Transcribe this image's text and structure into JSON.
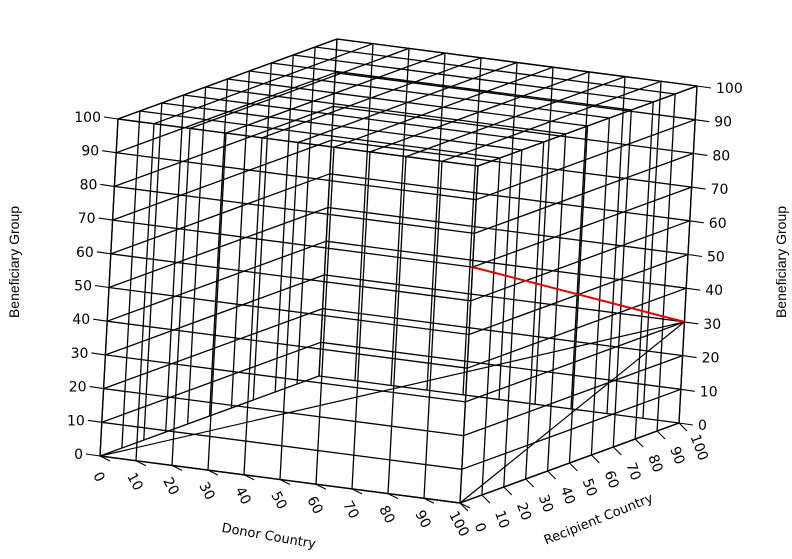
{
  "chart_data": {
    "type": "line3d",
    "title": "",
    "xlabel": "Donor Country",
    "ylabel": "Recipient Country",
    "zlabel_left": "Beneficiary Group",
    "zlabel_right": "Beneficiary Group",
    "xlim": [
      0,
      100
    ],
    "ylim": [
      0,
      100
    ],
    "zlim": [
      0,
      100
    ],
    "x_ticks": [
      "0",
      "10",
      "20",
      "30",
      "40",
      "50",
      "60",
      "70",
      "80",
      "90",
      "100"
    ],
    "y_ticks": [
      "0",
      "10",
      "20",
      "30",
      "40",
      "50",
      "60",
      "70",
      "80",
      "90",
      "100"
    ],
    "z_ticks": [
      "0",
      "10",
      "20",
      "30",
      "40",
      "50",
      "60",
      "70",
      "80",
      "90",
      "100"
    ],
    "grid": true,
    "series": [
      {
        "color": "#e00000",
        "points": [
          {
            "x": 100,
            "y": 100,
            "z": 30
          },
          {
            "x": 100,
            "y": 0,
            "z": 70
          }
        ]
      }
    ],
    "guides": [
      {
        "color": "#000000",
        "points": [
          {
            "x": 0,
            "y": 0,
            "z": 0
          },
          {
            "x": 100,
            "y": 100,
            "z": 30
          },
          {
            "x": 100,
            "y": 0,
            "z": 0
          }
        ]
      }
    ]
  }
}
